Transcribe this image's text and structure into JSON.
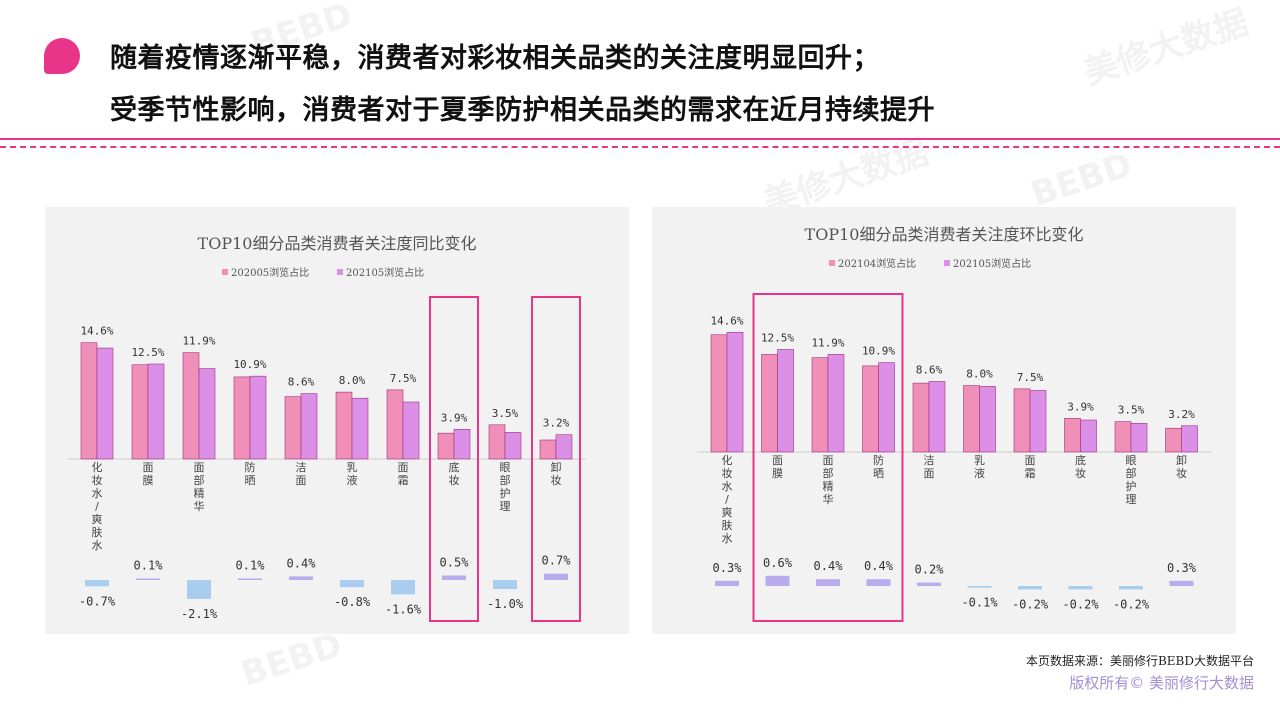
{
  "header": {
    "line1": "随着疫情逐渐平稳，消费者对彩妆相关品类的关注度明显回升；",
    "line2": "受季节性影响，消费者对于夏季防护相关品类的需求在近月持续提升"
  },
  "footer": {
    "source": "本页数据来源：美丽修行BEBD大数据平台",
    "copyright": "版权所有© 美丽修行大数据"
  },
  "watermark": {
    "text1": "BEBD",
    "text2": "美修大数据"
  },
  "colors": {
    "accent": "#e8358a",
    "series1": "#f08fb8",
    "series2": "#dc8fe6",
    "change_pos": "#b9acec",
    "change_neg": "#a8cdee"
  },
  "chart_data": [
    {
      "type": "bar",
      "title": "TOP10细分品类消费者关注度同比变化",
      "categories": [
        "化妆水/爽肤水",
        "面膜",
        "面部精华",
        "防晒",
        "洁面",
        "乳液",
        "面霜",
        "底妆",
        "眼部护理",
        "卸妆"
      ],
      "series": [
        {
          "name": "202005浏览占比",
          "values": [
            15.3,
            12.4,
            14.0,
            10.8,
            8.2,
            8.8,
            9.1,
            3.4,
            4.5,
            2.5
          ]
        },
        {
          "name": "202105浏览占比",
          "values": [
            14.6,
            12.5,
            11.9,
            10.9,
            8.6,
            8.0,
            7.5,
            3.9,
            3.5,
            3.2
          ]
        }
      ],
      "labels": [
        "14.6%",
        "12.5%",
        "11.9%",
        "10.9%",
        "8.6%",
        "8.0%",
        "7.5%",
        "3.9%",
        "3.5%",
        "3.2%"
      ],
      "change_values": [
        -0.7,
        0.1,
        -2.1,
        0.1,
        0.4,
        -0.8,
        -1.6,
        0.5,
        -1.0,
        0.7
      ],
      "change_labels": [
        "-0.7%",
        "0.1%",
        "-2.1%",
        "0.1%",
        "0.4%",
        "-0.8%",
        "-1.6%",
        "0.5%",
        "-1.0%",
        "0.7%"
      ],
      "highlight_groups": [
        [
          7
        ],
        [
          9
        ]
      ],
      "legend_position": "top"
    },
    {
      "type": "bar",
      "title": "TOP10细分品类消费者关注度环比变化",
      "categories": [
        "化妆水/爽肤水",
        "面膜",
        "面部精华",
        "防晒",
        "洁面",
        "乳液",
        "面霜",
        "底妆",
        "眼部护理",
        "卸妆"
      ],
      "series": [
        {
          "name": "202104浏览占比",
          "values": [
            14.3,
            11.9,
            11.5,
            10.5,
            8.4,
            8.1,
            7.7,
            4.1,
            3.7,
            2.9
          ]
        },
        {
          "name": "202105浏览占比",
          "values": [
            14.6,
            12.5,
            11.9,
            10.9,
            8.6,
            8.0,
            7.5,
            3.9,
            3.5,
            3.2
          ]
        }
      ],
      "labels": [
        "14.6%",
        "12.5%",
        "11.9%",
        "10.9%",
        "8.6%",
        "8.0%",
        "7.5%",
        "3.9%",
        "3.5%",
        "3.2%"
      ],
      "change_values": [
        0.3,
        0.6,
        0.4,
        0.4,
        0.2,
        -0.1,
        -0.2,
        -0.2,
        -0.2,
        0.3
      ],
      "change_labels": [
        "0.3%",
        "0.6%",
        "0.4%",
        "0.4%",
        "0.2%",
        "-0.1%",
        "-0.2%",
        "-0.2%",
        "-0.2%",
        "0.3%"
      ],
      "highlight_groups": [
        [
          1,
          2,
          3
        ]
      ],
      "legend_position": "top"
    }
  ]
}
